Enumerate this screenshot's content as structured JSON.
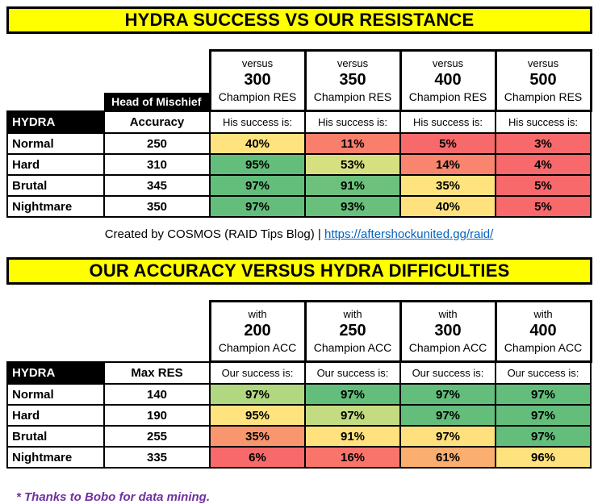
{
  "banners": {
    "title1": "HYDRA SUCCESS VS OUR RESISTANCE",
    "title2": "OUR ACCURACY VERSUS HYDRA DIFFICULTIES"
  },
  "credit": {
    "prefix": "Created by COSMOS (RAID Tips Blog) | ",
    "link_text": "https://aftershockunited.gg/raid/"
  },
  "footer": {
    "note": "* Thanks to Bobo for data mining."
  },
  "colors": {
    "banner_bg": "#FFFF00",
    "link_blue": "#0563C1",
    "footer_purple": "#7030A0",
    "green": "#63BE7B",
    "yellow": "#FFE37E",
    "red": "#F8696B"
  },
  "table1": {
    "corner_label": "HYDRA",
    "subheader_label": "Head of Mischief",
    "stat_header": "Accuracy",
    "success_label": "His success is:",
    "columns": [
      {
        "prefix": "versus",
        "value": "300",
        "suffix": "Champion RES"
      },
      {
        "prefix": "versus",
        "value": "350",
        "suffix": "Champion RES"
      },
      {
        "prefix": "versus",
        "value": "400",
        "suffix": "Champion RES"
      },
      {
        "prefix": "versus",
        "value": "500",
        "suffix": "Champion RES"
      }
    ],
    "rows": [
      {
        "difficulty": "Normal",
        "stat": "250",
        "cells": [
          {
            "value": "40%",
            "color": "#FFE37E"
          },
          {
            "value": "11%",
            "color": "#F97E6C"
          },
          {
            "value": "5%",
            "color": "#F8696B"
          },
          {
            "value": "3%",
            "color": "#F8696B"
          }
        ]
      },
      {
        "difficulty": "Hard",
        "stat": "310",
        "cells": [
          {
            "value": "95%",
            "color": "#63BE7B"
          },
          {
            "value": "53%",
            "color": "#D7E081"
          },
          {
            "value": "14%",
            "color": "#F9856E"
          },
          {
            "value": "4%",
            "color": "#F8696B"
          }
        ]
      },
      {
        "difficulty": "Brutal",
        "stat": "345",
        "cells": [
          {
            "value": "97%",
            "color": "#63BE7B"
          },
          {
            "value": "91%",
            "color": "#6DC17C"
          },
          {
            "value": "35%",
            "color": "#FFE37E"
          },
          {
            "value": "5%",
            "color": "#F8696B"
          }
        ]
      },
      {
        "difficulty": "Nightmare",
        "stat": "350",
        "cells": [
          {
            "value": "97%",
            "color": "#63BE7B"
          },
          {
            "value": "93%",
            "color": "#68C07C"
          },
          {
            "value": "40%",
            "color": "#FFE27D"
          },
          {
            "value": "5%",
            "color": "#F8696B"
          }
        ]
      }
    ]
  },
  "table2": {
    "corner_label": "HYDRA",
    "stat_header": "Max RES",
    "success_label": "Our success is:",
    "columns": [
      {
        "prefix": "with",
        "value": "200",
        "suffix": "Champion ACC"
      },
      {
        "prefix": "with",
        "value": "250",
        "suffix": "Champion ACC"
      },
      {
        "prefix": "with",
        "value": "300",
        "suffix": "Champion ACC"
      },
      {
        "prefix": "with",
        "value": "400",
        "suffix": "Champion ACC"
      }
    ],
    "rows": [
      {
        "difficulty": "Normal",
        "stat": "140",
        "cells": [
          {
            "value": "97%",
            "color": "#B1D780"
          },
          {
            "value": "97%",
            "color": "#63BE7B"
          },
          {
            "value": "97%",
            "color": "#63BE7B"
          },
          {
            "value": "97%",
            "color": "#63BE7B"
          }
        ]
      },
      {
        "difficulty": "Hard",
        "stat": "190",
        "cells": [
          {
            "value": "95%",
            "color": "#FFE37E"
          },
          {
            "value": "97%",
            "color": "#C3DC81"
          },
          {
            "value": "97%",
            "color": "#63BE7B"
          },
          {
            "value": "97%",
            "color": "#63BE7B"
          }
        ]
      },
      {
        "difficulty": "Brutal",
        "stat": "255",
        "cells": [
          {
            "value": "35%",
            "color": "#F9966D"
          },
          {
            "value": "91%",
            "color": "#FFE17D"
          },
          {
            "value": "97%",
            "color": "#FEE17C"
          },
          {
            "value": "97%",
            "color": "#63BE7B"
          }
        ]
      },
      {
        "difficulty": "Nightmare",
        "stat": "335",
        "cells": [
          {
            "value": "6%",
            "color": "#F8696B"
          },
          {
            "value": "16%",
            "color": "#F9756C"
          },
          {
            "value": "61%",
            "color": "#FAAE6F"
          },
          {
            "value": "96%",
            "color": "#FDE27D"
          }
        ]
      }
    ]
  },
  "chart_data": [
    {
      "type": "heatmap",
      "title": "HYDRA SUCCESS VS OUR RESISTANCE",
      "row_label": "HYDRA",
      "stat_label": "Head of Mischief Accuracy",
      "cell_label": "His success is:",
      "rows": [
        "Normal",
        "Hard",
        "Brutal",
        "Nightmare"
      ],
      "row_accuracy": [
        250,
        310,
        345,
        350
      ],
      "columns": [
        "versus 300 Champion RES",
        "versus 350 Champion RES",
        "versus 400 Champion RES",
        "versus 500 Champion RES"
      ],
      "values_percent": [
        [
          40,
          11,
          5,
          3
        ],
        [
          95,
          53,
          14,
          4
        ],
        [
          97,
          91,
          35,
          5
        ],
        [
          97,
          93,
          40,
          5
        ]
      ]
    },
    {
      "type": "heatmap",
      "title": "OUR ACCURACY VERSUS HYDRA DIFFICULTIES",
      "row_label": "HYDRA",
      "stat_label": "Max RES",
      "cell_label": "Our success is:",
      "rows": [
        "Normal",
        "Hard",
        "Brutal",
        "Nightmare"
      ],
      "row_max_res": [
        140,
        190,
        255,
        335
      ],
      "columns": [
        "with 200 Champion ACC",
        "with 250 Champion ACC",
        "with 300 Champion ACC",
        "with 400 Champion ACC"
      ],
      "values_percent": [
        [
          97,
          97,
          97,
          97
        ],
        [
          95,
          97,
          97,
          97
        ],
        [
          35,
          91,
          97,
          97
        ],
        [
          6,
          16,
          61,
          96
        ]
      ]
    }
  ]
}
